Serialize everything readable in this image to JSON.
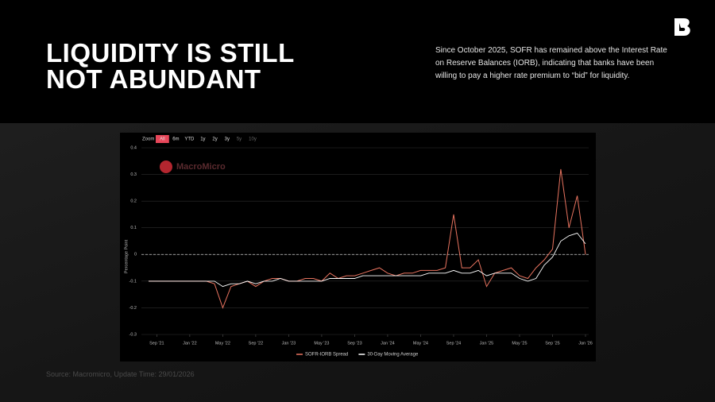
{
  "header": {
    "title": "LIQUIDITY IS STILL NOT ABUNDANT",
    "description": "Since October 2025, SOFR has remained above the Interest Rate on Reserve Balances (IORB), indicating that banks have been willing to pay a higher rate premium to “bid” for liquidity."
  },
  "footer": {
    "source": "Source: Macromicro, Update Time: 29/01/2026"
  },
  "chart_data": {
    "type": "line",
    "watermark": "MacroMicro",
    "y_label": "Percentage Point",
    "zoom": {
      "label": "Zoom",
      "options": [
        "All",
        "6m",
        "YTD",
        "1y",
        "2y",
        "3y",
        "5y",
        "10y"
      ],
      "selected": "All"
    },
    "x": [
      "2021-08",
      "2021-09",
      "2021-10",
      "2021-11",
      "2021-12",
      "2022-01",
      "2022-02",
      "2022-03",
      "2022-04",
      "2022-05",
      "2022-06",
      "2022-07",
      "2022-08",
      "2022-09",
      "2022-10",
      "2022-11",
      "2022-12",
      "2023-01",
      "2023-02",
      "2023-03",
      "2023-04",
      "2023-05",
      "2023-06",
      "2023-07",
      "2023-08",
      "2023-09",
      "2023-10",
      "2023-11",
      "2023-12",
      "2024-01",
      "2024-02",
      "2024-03",
      "2024-04",
      "2024-05",
      "2024-06",
      "2024-07",
      "2024-08",
      "2024-09",
      "2024-10",
      "2024-11",
      "2024-12",
      "2025-01",
      "2025-02",
      "2025-03",
      "2025-04",
      "2025-05",
      "2025-06",
      "2025-07",
      "2025-08",
      "2025-09",
      "2025-10",
      "2025-11",
      "2025-12",
      "2026-01"
    ],
    "series": [
      {
        "name": "SOFR-IORB Spread",
        "color": "#e8735f",
        "values": [
          -0.1,
          -0.1,
          -0.1,
          -0.1,
          -0.1,
          -0.1,
          -0.1,
          -0.1,
          -0.11,
          -0.2,
          -0.12,
          -0.11,
          -0.1,
          -0.12,
          -0.1,
          -0.09,
          -0.09,
          -0.1,
          -0.1,
          -0.09,
          -0.09,
          -0.1,
          -0.07,
          -0.09,
          -0.08,
          -0.08,
          -0.07,
          -0.06,
          -0.05,
          -0.07,
          -0.08,
          -0.07,
          -0.07,
          -0.06,
          -0.06,
          -0.06,
          -0.05,
          0.15,
          -0.05,
          -0.05,
          -0.02,
          -0.12,
          -0.07,
          -0.06,
          -0.05,
          -0.08,
          -0.09,
          -0.05,
          -0.02,
          0.02,
          0.32,
          0.1,
          0.22,
          0.0
        ]
      },
      {
        "name": "30-Day Moving Average",
        "color": "#ffffff",
        "values": [
          -0.1,
          -0.1,
          -0.1,
          -0.1,
          -0.1,
          -0.1,
          -0.1,
          -0.1,
          -0.1,
          -0.12,
          -0.11,
          -0.11,
          -0.1,
          -0.11,
          -0.1,
          -0.1,
          -0.09,
          -0.1,
          -0.1,
          -0.1,
          -0.1,
          -0.1,
          -0.09,
          -0.09,
          -0.09,
          -0.09,
          -0.08,
          -0.08,
          -0.08,
          -0.08,
          -0.08,
          -0.08,
          -0.08,
          -0.08,
          -0.07,
          -0.07,
          -0.07,
          -0.06,
          -0.07,
          -0.07,
          -0.06,
          -0.08,
          -0.07,
          -0.07,
          -0.07,
          -0.09,
          -0.1,
          -0.09,
          -0.04,
          -0.01,
          0.05,
          0.07,
          0.08,
          0.04
        ]
      }
    ],
    "ylim": [
      -0.3,
      0.4
    ],
    "yticks": [
      -0.3,
      -0.2,
      -0.1,
      0,
      0.1,
      0.2,
      0.3,
      0.4
    ],
    "xticks": [
      {
        "value": "2021-09",
        "label": "Sep '21"
      },
      {
        "value": "2022-01",
        "label": "Jan '22"
      },
      {
        "value": "2022-05",
        "label": "May '22"
      },
      {
        "value": "2022-09",
        "label": "Sep '22"
      },
      {
        "value": "2023-01",
        "label": "Jan '23"
      },
      {
        "value": "2023-05",
        "label": "May '23"
      },
      {
        "value": "2023-09",
        "label": "Sep '23"
      },
      {
        "value": "2024-01",
        "label": "Jan '24"
      },
      {
        "value": "2024-05",
        "label": "May '24"
      },
      {
        "value": "2024-09",
        "label": "Sep '24"
      },
      {
        "value": "2025-01",
        "label": "Jan '25"
      },
      {
        "value": "2025-05",
        "label": "May '25"
      },
      {
        "value": "2025-09",
        "label": "Sep '25"
      },
      {
        "value": "2026-01",
        "label": "Jan '26"
      }
    ],
    "reference_line": 0,
    "grid": true,
    "legend": "bottom"
  }
}
